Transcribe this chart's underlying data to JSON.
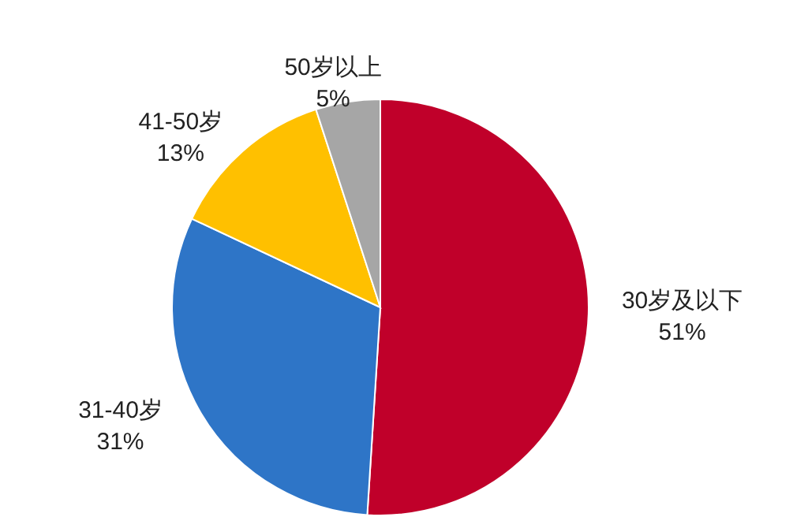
{
  "chart_data": {
    "type": "pie",
    "categories": [
      "30岁及以下",
      "31-40岁",
      "41-50岁",
      "50岁以上"
    ],
    "values": [
      51,
      31,
      13,
      5
    ],
    "value_labels": [
      "51%",
      "31%",
      "13%",
      "5%"
    ],
    "colors": [
      "#c0002a",
      "#2e75c7",
      "#ffc000",
      "#a6a6a6"
    ]
  }
}
